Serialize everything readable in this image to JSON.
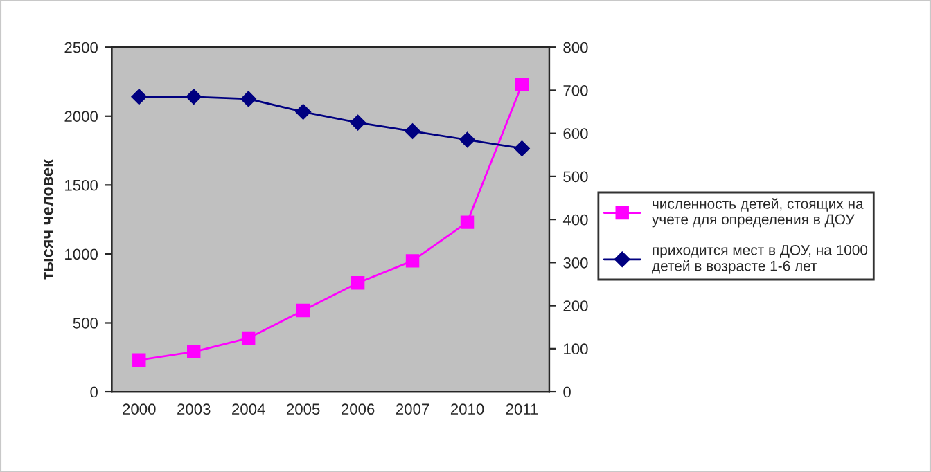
{
  "chart_data": {
    "type": "line",
    "ylabel": "тысяч человек",
    "categories": [
      "2000",
      "2003",
      "2004",
      "2005",
      "2006",
      "2007",
      "2010",
      "2011"
    ],
    "series": [
      {
        "name": "численность детей, стоящих на учете для определения в ДОУ",
        "color": "#ff00ff",
        "marker": "square",
        "values": [
          230,
          290,
          390,
          590,
          790,
          950,
          1230,
          2230
        ]
      },
      {
        "name": "приходится мест в ДОУ, на 1000 детей в возрасте 1-6 лет",
        "color": "#000080",
        "marker": "diamond",
        "axis": "y2",
        "values": [
          685,
          685,
          680,
          650,
          625,
          605,
          585,
          565
        ]
      }
    ],
    "ylim": [
      0,
      2500
    ],
    "yticks": [
      0,
      500,
      1000,
      1500,
      2000,
      2500
    ],
    "y2lim": [
      0,
      800
    ],
    "y2ticks": [
      0,
      100,
      200,
      300,
      400,
      500,
      600,
      700,
      800
    ],
    "grid": false,
    "legend": "right"
  }
}
